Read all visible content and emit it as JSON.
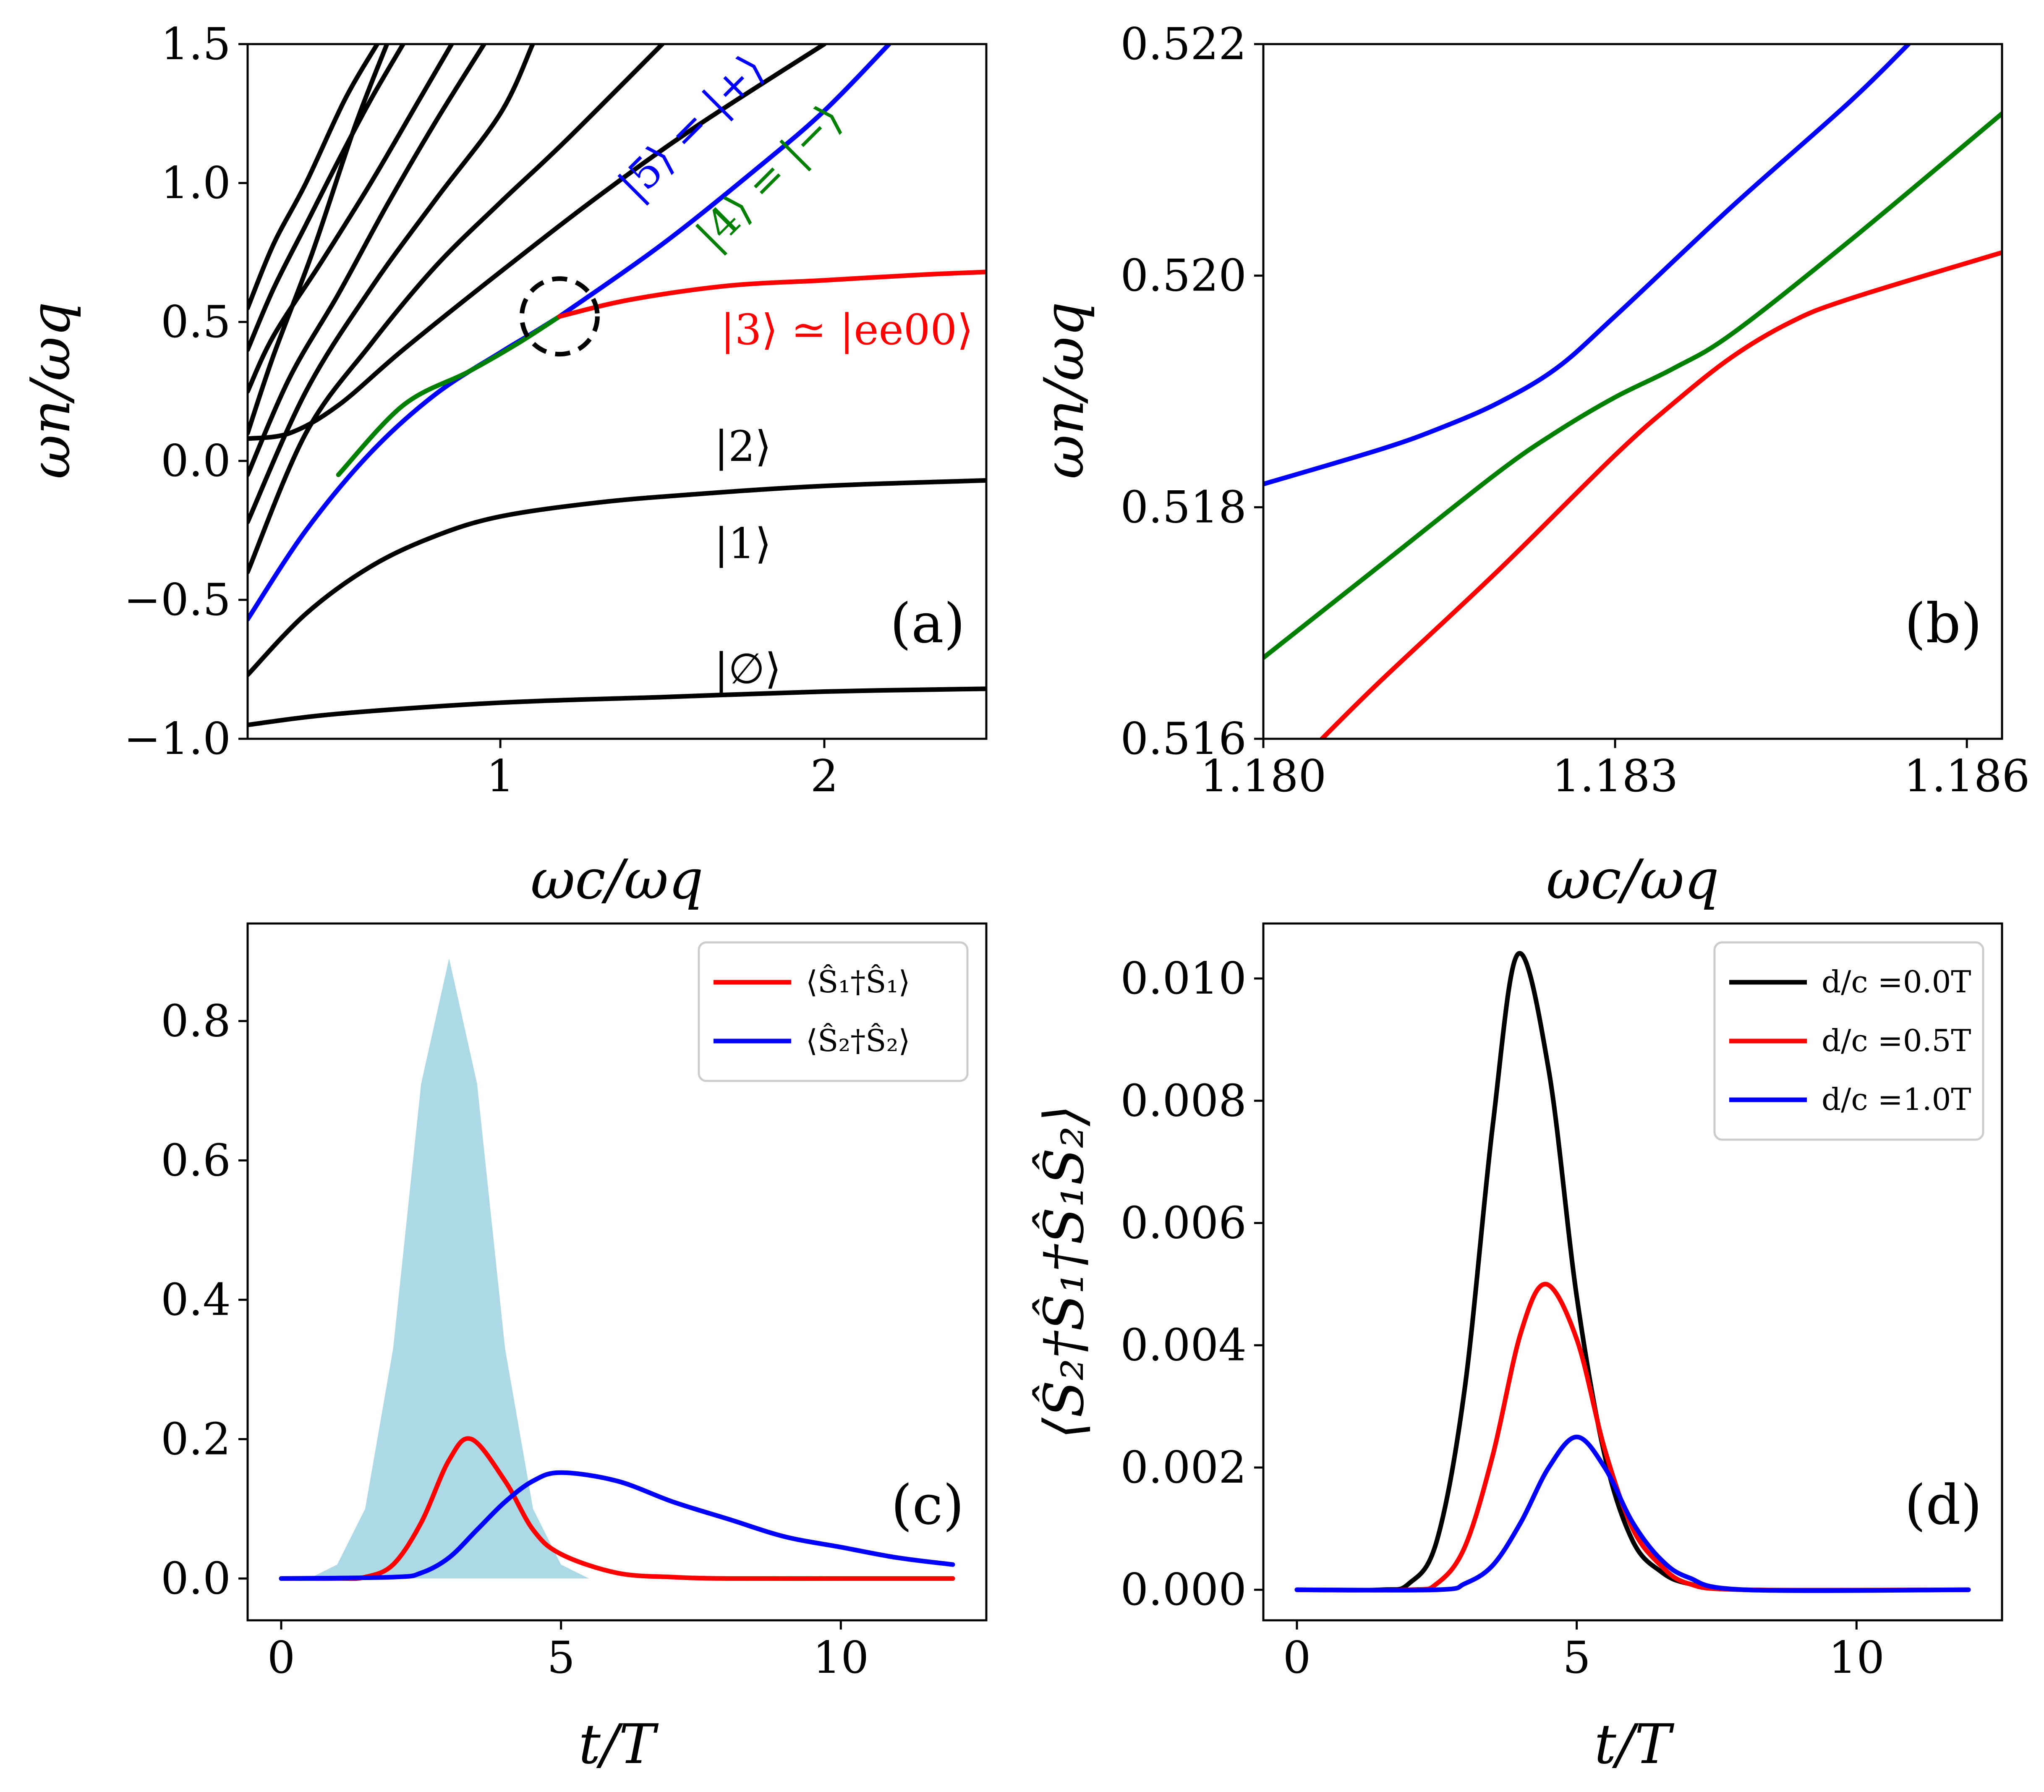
{
  "chart_data": [
    {
      "id": "a",
      "type": "line",
      "panel_label": "(a)",
      "xlabel": "ωc/ωq",
      "ylabel": "ωn/ωq",
      "xlim": [
        0.22,
        2.5
      ],
      "ylim": [
        -1.0,
        1.5
      ],
      "xticks": [
        {
          "v": 1,
          "label": "1"
        },
        {
          "v": 2,
          "label": "2"
        }
      ],
      "yticks": [
        {
          "v": 1.5,
          "label": "1.5"
        },
        {
          "v": 1.0,
          "label": "1.0"
        },
        {
          "v": 0.5,
          "label": "0.5"
        },
        {
          "v": 0.0,
          "label": "0.0"
        },
        {
          "v": -0.5,
          "label": "−0.5"
        },
        {
          "v": -1.0,
          "label": "−1.0"
        }
      ],
      "series": [
        {
          "color": "#000000",
          "x": [
            0.22,
            0.5,
            1.0,
            1.5,
            2.0,
            2.5
          ],
          "y": [
            -0.95,
            -0.91,
            -0.87,
            -0.85,
            -0.83,
            -0.82
          ]
        },
        {
          "color": "#000000",
          "x": [
            0.22,
            0.4,
            0.6,
            0.8,
            1.0,
            1.3,
            1.6,
            2.0,
            2.5
          ],
          "y": [
            -0.77,
            -0.55,
            -0.38,
            -0.27,
            -0.2,
            -0.15,
            -0.12,
            -0.09,
            -0.07
          ]
        },
        {
          "color": "#0000ff",
          "x": [
            0.22,
            0.4,
            0.6,
            0.8,
            1.0,
            1.1,
            1.183
          ],
          "y": [
            -0.57,
            -0.25,
            0.03,
            0.24,
            0.39,
            0.46,
            0.52
          ]
        },
        {
          "color": "#008000",
          "x": [
            0.5,
            0.7,
            0.9,
            1.05,
            1.183
          ],
          "y": [
            -0.05,
            0.2,
            0.32,
            0.42,
            0.52
          ]
        },
        {
          "color": "#0000ff",
          "x": [
            1.183,
            1.5,
            1.8,
            2.0,
            2.2
          ],
          "y": [
            0.52,
            0.78,
            1.06,
            1.26,
            1.5
          ]
        },
        {
          "color": "#ff0000",
          "x": [
            1.183,
            1.4,
            1.7,
            2.0,
            2.3,
            2.5
          ],
          "y": [
            0.52,
            0.58,
            0.63,
            0.65,
            0.67,
            0.68
          ]
        },
        {
          "color": "#000000",
          "x": [
            0.22,
            0.35,
            0.5,
            0.7,
            1.0,
            1.3,
            1.6,
            2.0
          ],
          "y": [
            0.08,
            0.1,
            0.2,
            0.4,
            0.68,
            0.95,
            1.2,
            1.5
          ]
        },
        {
          "color": "#000000",
          "x": [
            0.22,
            0.4,
            0.6,
            0.8,
            1.0,
            1.2,
            1.5
          ],
          "y": [
            -0.4,
            0.1,
            0.42,
            0.7,
            0.93,
            1.15,
            1.5
          ]
        },
        {
          "color": "#000000",
          "x": [
            0.22,
            0.4,
            0.6,
            0.8,
            1.0,
            1.1
          ],
          "y": [
            -0.22,
            0.25,
            0.62,
            0.94,
            1.25,
            1.5
          ]
        },
        {
          "color": "#000000",
          "x": [
            0.22,
            0.35,
            0.5,
            0.65,
            0.8,
            0.95
          ],
          "y": [
            -0.05,
            0.3,
            0.6,
            0.92,
            1.22,
            1.5
          ]
        },
        {
          "color": "#000000",
          "x": [
            0.22,
            0.3,
            0.45,
            0.6,
            0.75,
            0.85
          ],
          "y": [
            0.25,
            0.45,
            0.72,
            1.0,
            1.3,
            1.5
          ]
        },
        {
          "color": "#000000",
          "x": [
            0.22,
            0.3,
            0.4,
            0.5,
            0.6,
            0.7
          ],
          "y": [
            0.4,
            0.62,
            0.85,
            1.08,
            1.3,
            1.5
          ]
        },
        {
          "color": "#000000",
          "x": [
            0.22,
            0.3,
            0.42,
            0.55,
            0.65
          ],
          "y": [
            0.1,
            0.38,
            0.75,
            1.2,
            1.5
          ]
        },
        {
          "color": "#000000",
          "x": [
            0.22,
            0.3,
            0.4,
            0.52,
            0.62
          ],
          "y": [
            0.55,
            0.78,
            1.0,
            1.3,
            1.5
          ]
        }
      ],
      "annotations": [
        {
          "text": "|5⟩ = |+⟩",
          "color": "#0000ff",
          "x": 1.42,
          "y": 0.93,
          "rotate": -45
        },
        {
          "text": "|4⟩ = |−⟩",
          "color": "#008000",
          "x": 1.66,
          "y": 0.75,
          "rotate": -45
        },
        {
          "text": "|3⟩ ≃ |ee00⟩",
          "color": "#ff0000",
          "x": 1.68,
          "y": 0.42,
          "rotate": 0
        },
        {
          "text": "|2⟩",
          "color": "#000000",
          "x": 1.66,
          "y": 0.0,
          "rotate": 0
        },
        {
          "text": "|1⟩",
          "color": "#000000",
          "x": 1.66,
          "y": -0.35,
          "rotate": 0
        },
        {
          "text": "|∅⟩",
          "color": "#000000",
          "x": 1.66,
          "y": -0.8,
          "rotate": 0
        }
      ],
      "marker_circle": {
        "x": 1.183,
        "y": 0.52
      }
    },
    {
      "id": "b",
      "type": "line",
      "panel_label": "(b)",
      "xlabel": "ωc/ωq",
      "ylabel": "ωn/ωq",
      "xlim": [
        1.18,
        1.1863
      ],
      "ylim": [
        0.516,
        0.522
      ],
      "xticks": [
        {
          "v": 1.18,
          "label": "1.180"
        },
        {
          "v": 1.183,
          "label": "1.183"
        },
        {
          "v": 1.186,
          "label": "1.186"
        }
      ],
      "yticks": [
        {
          "v": 0.522,
          "label": "0.522"
        },
        {
          "v": 0.52,
          "label": "0.520"
        },
        {
          "v": 0.518,
          "label": "0.518"
        },
        {
          "v": 0.516,
          "label": "0.516"
        }
      ],
      "series": [
        {
          "color": "#0000ff",
          "x": [
            1.18,
            1.181,
            1.1815,
            1.182,
            1.1825,
            1.183,
            1.184,
            1.185,
            1.1856
          ],
          "y": [
            0.5182,
            0.5185,
            0.51868,
            0.5189,
            0.5192,
            0.51965,
            0.5206,
            0.5215,
            0.5221
          ]
        },
        {
          "color": "#008000",
          "x": [
            1.18,
            1.181,
            1.182,
            1.1825,
            1.183,
            1.1835,
            1.184,
            1.185,
            1.1863
          ],
          "y": [
            0.5167,
            0.5175,
            0.5183,
            0.51865,
            0.51895,
            0.5192,
            0.5195,
            0.5203,
            0.5214
          ]
        },
        {
          "color": "#ff0000",
          "x": [
            1.1805,
            1.181,
            1.182,
            1.183,
            1.1835,
            1.184,
            1.1845,
            1.185,
            1.1863
          ],
          "y": [
            0.516,
            0.5165,
            0.51745,
            0.51845,
            0.5189,
            0.5193,
            0.5196,
            0.5198,
            0.5202
          ]
        }
      ]
    },
    {
      "id": "c",
      "type": "line",
      "panel_label": "(c)",
      "xlabel": "t/T",
      "ylabel": "",
      "xlim": [
        -0.6,
        12.6
      ],
      "ylim": [
        -0.06,
        0.94
      ],
      "xticks": [
        {
          "v": 0,
          "label": "0"
        },
        {
          "v": 5,
          "label": "5"
        },
        {
          "v": 10,
          "label": "10"
        }
      ],
      "yticks": [
        {
          "v": 0,
          "label": "0.0"
        },
        {
          "v": 0.2,
          "label": "0.2"
        },
        {
          "v": 0.4,
          "label": "0.4"
        },
        {
          "v": 0.6,
          "label": "0.6"
        },
        {
          "v": 0.8,
          "label": "0.8"
        }
      ],
      "filled_pulse": {
        "color": "#add8e6",
        "x": [
          0.0,
          0.5,
          1.0,
          1.5,
          2.0,
          2.5,
          3.0,
          3.5,
          4.0,
          4.5,
          5.0,
          5.5,
          6.0
        ],
        "y": [
          0.0,
          0.0,
          0.02,
          0.1,
          0.33,
          0.71,
          0.89,
          0.71,
          0.33,
          0.1,
          0.02,
          0.0,
          0.0
        ]
      },
      "series": [
        {
          "name": "⟨Ŝ₁†Ŝ₁⟩",
          "color": "#ff0000",
          "x": [
            0,
            1,
            1.5,
            2,
            2.5,
            3,
            3.4,
            4,
            4.5,
            5,
            6,
            7,
            8,
            10,
            12
          ],
          "y": [
            0,
            0,
            0.002,
            0.02,
            0.08,
            0.17,
            0.2,
            0.14,
            0.07,
            0.035,
            0.008,
            0.002,
            0,
            0,
            0
          ]
        },
        {
          "name": "⟨Ŝ₂†Ŝ₂⟩",
          "color": "#0000ff",
          "x": [
            0,
            2,
            2.5,
            3,
            3.5,
            4,
            4.5,
            5,
            6,
            7,
            8,
            9,
            10,
            11,
            12
          ],
          "y": [
            0,
            0.002,
            0.008,
            0.03,
            0.07,
            0.11,
            0.14,
            0.152,
            0.14,
            0.11,
            0.085,
            0.06,
            0.045,
            0.03,
            0.02
          ]
        }
      ],
      "legend_position": "top-right"
    },
    {
      "id": "d",
      "type": "line",
      "panel_label": "(d)",
      "xlabel": "t/T",
      "ylabel": "⟨Ŝ₂†Ŝ₁†Ŝ₁Ŝ₂⟩",
      "xlim": [
        -0.6,
        12.6
      ],
      "ylim": [
        -0.0005,
        0.0109
      ],
      "xticks": [
        {
          "v": 0,
          "label": "0"
        },
        {
          "v": 5,
          "label": "5"
        },
        {
          "v": 10,
          "label": "10"
        }
      ],
      "yticks": [
        {
          "v": 0,
          "label": "0.000"
        },
        {
          "v": 0.002,
          "label": "0.002"
        },
        {
          "v": 0.004,
          "label": "0.004"
        },
        {
          "v": 0.006,
          "label": "0.006"
        },
        {
          "v": 0.008,
          "label": "0.008"
        },
        {
          "v": 0.01,
          "label": "0.010"
        }
      ],
      "series": [
        {
          "name": "d/c =0.0T",
          "color": "#000000",
          "x": [
            0,
            1.5,
            2,
            2.5,
            3,
            3.5,
            3.95,
            4.5,
            5,
            5.5,
            6,
            6.5,
            7,
            8,
            12
          ],
          "y": [
            0,
            0,
            0.0001,
            0.0008,
            0.0033,
            0.0076,
            0.0104,
            0.0085,
            0.0048,
            0.0022,
            0.0008,
            0.0003,
            0.0001,
            0,
            0
          ]
        },
        {
          "name": "d/c =0.5T",
          "color": "#ff0000",
          "x": [
            0,
            2,
            2.5,
            3,
            3.5,
            4,
            4.45,
            5,
            5.5,
            6,
            6.5,
            7,
            8,
            12
          ],
          "y": [
            0,
            0,
            0.0001,
            0.0007,
            0.0022,
            0.0042,
            0.005,
            0.0041,
            0.0023,
            0.001,
            0.0004,
            0.0001,
            0,
            0
          ]
        },
        {
          "name": "d/c =1.0T",
          "color": "#0000ff",
          "x": [
            0,
            2.5,
            3,
            3.5,
            4,
            4.5,
            5,
            5.5,
            6,
            6.5,
            7,
            8,
            12
          ],
          "y": [
            0,
            0,
            0.0001,
            0.0004,
            0.0011,
            0.002,
            0.0025,
            0.002,
            0.0011,
            0.0005,
            0.0002,
            0,
            0
          ]
        }
      ],
      "legend_position": "top-right"
    }
  ]
}
